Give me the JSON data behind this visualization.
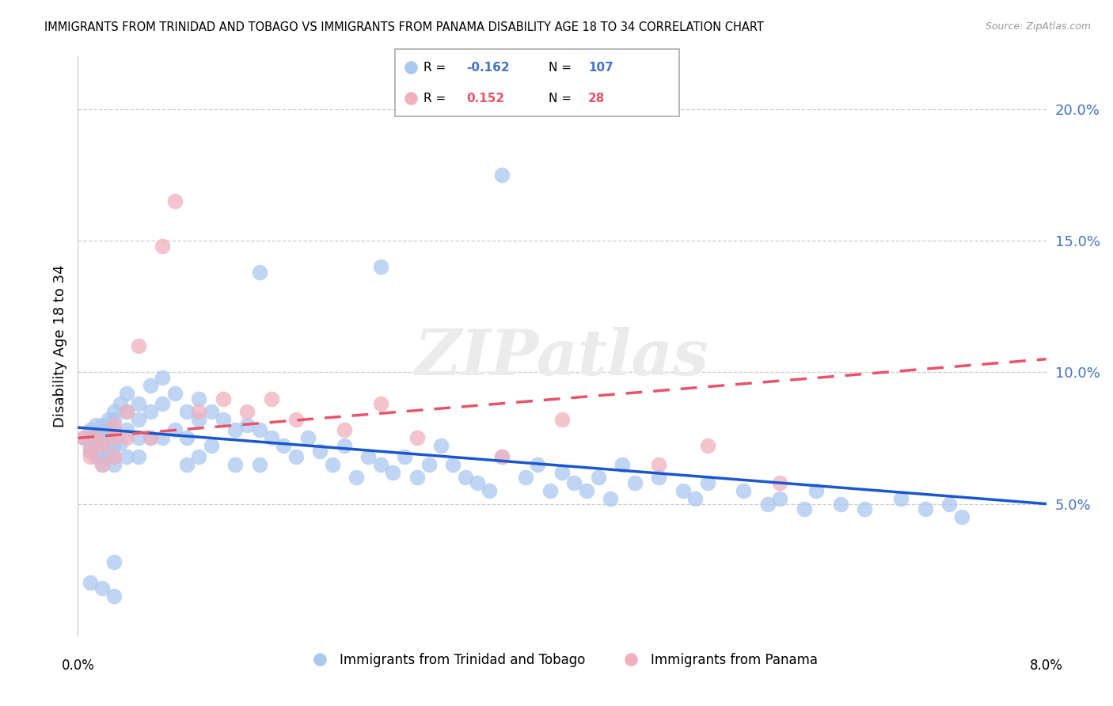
{
  "title": "IMMIGRANTS FROM TRINIDAD AND TOBAGO VS IMMIGRANTS FROM PANAMA DISABILITY AGE 18 TO 34 CORRELATION CHART",
  "source": "Source: ZipAtlas.com",
  "ylabel": "Disability Age 18 to 34",
  "legend_label1": "Immigrants from Trinidad and Tobago",
  "legend_label2": "Immigrants from Panama",
  "color_blue": "#aac8f0",
  "color_pink": "#f0b0be",
  "color_trendline_blue": "#1a56cc",
  "color_trendline_pink": "#e8536a",
  "watermark": "ZIPatlas",
  "xlim": [
    0.0,
    0.08
  ],
  "ylim": [
    0.0,
    0.22
  ],
  "blue_trend_y0": 0.079,
  "blue_trend_y1": 0.05,
  "pink_trend_y0": 0.075,
  "pink_trend_y1": 0.105,
  "blue_x": [
    0.0005,
    0.001,
    0.001,
    0.001,
    0.001,
    0.0015,
    0.0015,
    0.0015,
    0.0015,
    0.002,
    0.002,
    0.002,
    0.002,
    0.002,
    0.0025,
    0.0025,
    0.0025,
    0.003,
    0.003,
    0.003,
    0.003,
    0.003,
    0.003,
    0.0035,
    0.0035,
    0.004,
    0.004,
    0.004,
    0.004,
    0.005,
    0.005,
    0.005,
    0.005,
    0.006,
    0.006,
    0.006,
    0.007,
    0.007,
    0.007,
    0.008,
    0.008,
    0.009,
    0.009,
    0.009,
    0.01,
    0.01,
    0.01,
    0.011,
    0.011,
    0.012,
    0.013,
    0.013,
    0.014,
    0.015,
    0.015,
    0.016,
    0.017,
    0.018,
    0.019,
    0.02,
    0.021,
    0.022,
    0.023,
    0.024,
    0.025,
    0.026,
    0.027,
    0.028,
    0.029,
    0.03,
    0.031,
    0.032,
    0.033,
    0.034,
    0.035,
    0.037,
    0.038,
    0.039,
    0.04,
    0.041,
    0.042,
    0.043,
    0.044,
    0.045,
    0.046,
    0.048,
    0.05,
    0.051,
    0.052,
    0.055,
    0.057,
    0.058,
    0.06,
    0.061,
    0.063,
    0.065,
    0.068,
    0.07,
    0.072,
    0.073,
    0.025,
    0.035,
    0.015,
    0.003,
    0.001,
    0.002,
    0.003
  ],
  "blue_y": [
    0.075,
    0.075,
    0.078,
    0.07,
    0.072,
    0.08,
    0.076,
    0.068,
    0.072,
    0.08,
    0.078,
    0.074,
    0.068,
    0.065,
    0.082,
    0.076,
    0.07,
    0.085,
    0.082,
    0.078,
    0.072,
    0.068,
    0.065,
    0.088,
    0.073,
    0.092,
    0.085,
    0.078,
    0.068,
    0.088,
    0.082,
    0.075,
    0.068,
    0.095,
    0.085,
    0.075,
    0.098,
    0.088,
    0.075,
    0.092,
    0.078,
    0.085,
    0.075,
    0.065,
    0.09,
    0.082,
    0.068,
    0.085,
    0.072,
    0.082,
    0.078,
    0.065,
    0.08,
    0.078,
    0.065,
    0.075,
    0.072,
    0.068,
    0.075,
    0.07,
    0.065,
    0.072,
    0.06,
    0.068,
    0.065,
    0.062,
    0.068,
    0.06,
    0.065,
    0.072,
    0.065,
    0.06,
    0.058,
    0.055,
    0.068,
    0.06,
    0.065,
    0.055,
    0.062,
    0.058,
    0.055,
    0.06,
    0.052,
    0.065,
    0.058,
    0.06,
    0.055,
    0.052,
    0.058,
    0.055,
    0.05,
    0.052,
    0.048,
    0.055,
    0.05,
    0.048,
    0.052,
    0.048,
    0.05,
    0.045,
    0.14,
    0.175,
    0.138,
    0.028,
    0.02,
    0.018,
    0.015
  ],
  "pink_x": [
    0.0005,
    0.001,
    0.001,
    0.0015,
    0.002,
    0.002,
    0.003,
    0.003,
    0.003,
    0.004,
    0.004,
    0.005,
    0.006,
    0.007,
    0.008,
    0.01,
    0.012,
    0.014,
    0.016,
    0.018,
    0.022,
    0.025,
    0.028,
    0.035,
    0.04,
    0.048,
    0.052,
    0.058
  ],
  "pink_y": [
    0.075,
    0.07,
    0.068,
    0.075,
    0.072,
    0.065,
    0.08,
    0.075,
    0.068,
    0.085,
    0.075,
    0.11,
    0.075,
    0.148,
    0.165,
    0.085,
    0.09,
    0.085,
    0.09,
    0.082,
    0.078,
    0.088,
    0.075,
    0.068,
    0.082,
    0.065,
    0.072,
    0.058
  ]
}
